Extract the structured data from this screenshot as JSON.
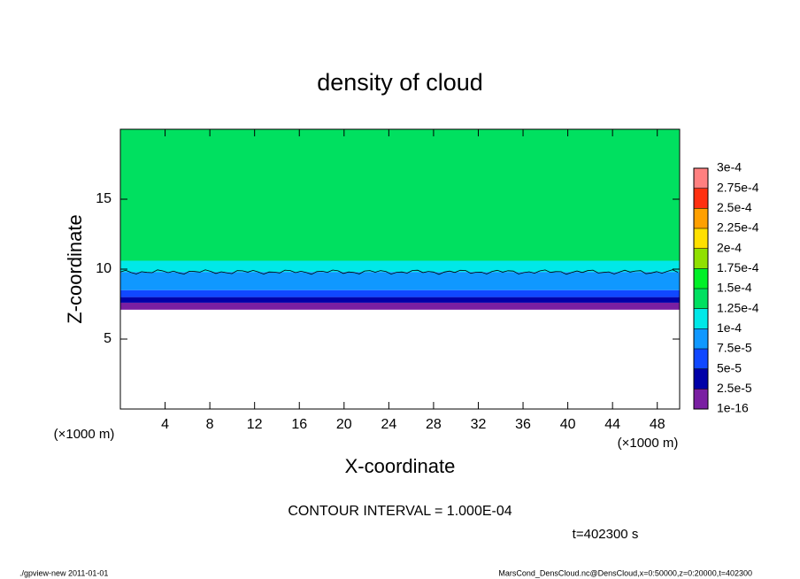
{
  "chart_data": {
    "type": "contour",
    "title": "density of cloud",
    "x_label": "X-coordinate",
    "y_label": "Z-coordinate",
    "x_unit": "(×1000 m)",
    "xlim": [
      0,
      50
    ],
    "xticks": [
      4,
      8,
      12,
      16,
      20,
      24,
      28,
      32,
      36,
      40,
      44,
      48
    ],
    "ylim": [
      0,
      20
    ],
    "yticks": [
      5,
      10,
      15
    ],
    "profile": {
      "z": [
        7.1,
        7.6,
        8.0,
        8.5,
        9.8,
        10.6,
        20
      ],
      "values": [
        1.2e-05,
        3.8e-05,
        6.2e-05,
        8.8e-05,
        0.00011,
        0.000135
      ]
    },
    "colorbar": {
      "levels": [
        {
          "value": 1e-16,
          "label": "1e-16"
        },
        {
          "value": 2.5e-05,
          "label": "2.5e-5"
        },
        {
          "value": 5e-05,
          "label": "5e-5"
        },
        {
          "value": 7.5e-05,
          "label": "7.5e-5"
        },
        {
          "value": 0.0001,
          "label": "1e-4"
        },
        {
          "value": 0.000125,
          "label": "1.25e-4"
        },
        {
          "value": 0.00015,
          "label": "1.5e-4"
        },
        {
          "value": 0.000175,
          "label": "1.75e-4"
        },
        {
          "value": 0.0002,
          "label": "2e-4"
        },
        {
          "value": 0.000225,
          "label": "2.25e-4"
        },
        {
          "value": 0.00025,
          "label": "2.5e-4"
        },
        {
          "value": 0.000275,
          "label": "2.75e-4"
        },
        {
          "value": 0.0003,
          "label": "3e-4"
        }
      ],
      "colors": [
        "#7a1fa2",
        "#0000a8",
        "#1048ff",
        "#1098ff",
        "#00e8e8",
        "#00e060",
        "#00f028",
        "#90e000",
        "#ffe000",
        "#ffa000",
        "#ff3010",
        "#ff8080"
      ]
    },
    "contour_interval": {
      "value": 0.0001,
      "label": "CONTOUR INTERVAL = 1.000E-04"
    },
    "time_label": "t=402300 s",
    "footer_left": "./gpview-new   2011-01-01",
    "footer_right": "MarsCond_DensCloud.nc@DensCloud,x=0:50000,z=0:20000,t=402300"
  }
}
